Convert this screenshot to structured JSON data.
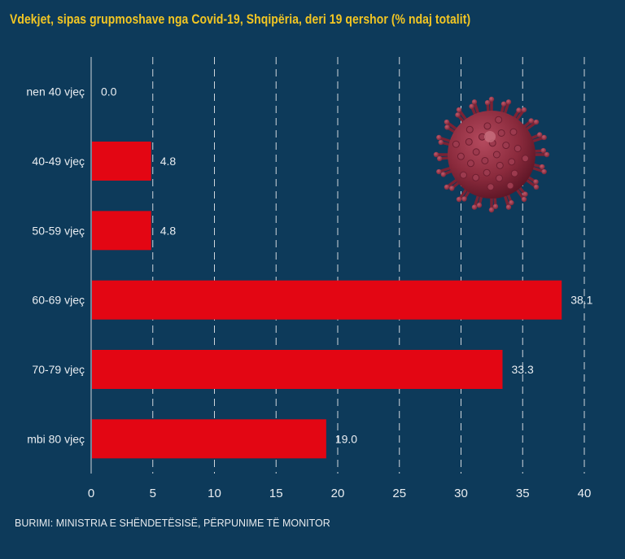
{
  "colors": {
    "background": "#0d3a5a",
    "title": "#f3c623",
    "bar": "#e30613",
    "text": "#e9edf1",
    "grid": "#d0d6dc"
  },
  "chart_data": {
    "type": "bar",
    "orientation": "horizontal",
    "title": "Vdekjet, sipas grupmoshave nga Covid-19, Shqipëria, deri 19 qershor (% ndaj totalit)",
    "categories": [
      "nen 40 vjeç",
      "40-49 vjeç",
      "50-59 vjeç",
      "60-69 vjeç",
      "70-79 vjeç",
      "mbi 80 vjeç"
    ],
    "values": [
      0.0,
      4.8,
      4.8,
      38.1,
      33.3,
      19.0
    ],
    "value_labels": [
      "0.0",
      "4.8",
      "4.8",
      "38.1",
      "33.3",
      "19.0"
    ],
    "xlim": [
      0,
      40
    ],
    "xticks": [
      "0",
      "5",
      "10",
      "15",
      "20",
      "25",
      "30",
      "35",
      "40"
    ],
    "xlabel": "",
    "ylabel": "",
    "grid": "vertical dashed",
    "legend": "none",
    "decoration": "virus-icon"
  },
  "source": "BURIMI: MINISTRIA E SHËNDETËSISË, PËRPUNIME TË MONITOR"
}
